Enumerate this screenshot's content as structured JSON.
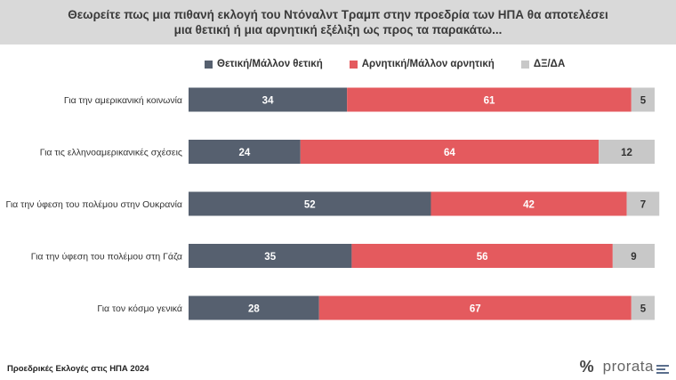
{
  "header": {
    "title_line1": "Θεωρείτε πως μια πιθανή εκλογή του Ντόναλντ Τραμπ στην προεδρία των ΗΠΑ θα αποτελέσει",
    "title_line2": "μια θετική ή μια αρνητική εξέλιξη ως προς τα παρακάτω..."
  },
  "colors": {
    "positive": "#56606f",
    "negative": "#e45a5e",
    "dkna": "#c8c8c8"
  },
  "chart_data": {
    "type": "bar",
    "orientation": "horizontal",
    "stacked": true,
    "categories": [
      "Για την αμερικανική κοινωνία",
      "Για τις ελληνοαμερικανικές σχέσεις",
      "Για την ύφεση του πολέμου στην Ουκρανία",
      "Για την ύφεση του πολέμου στη Γάζα",
      "Για τον κόσμο γενικά"
    ],
    "series": [
      {
        "name": "Θετική/Μάλλον θετική",
        "values": [
          34,
          24,
          52,
          35,
          28
        ]
      },
      {
        "name": "Αρνητική/Μάλλον αρνητική",
        "values": [
          61,
          64,
          42,
          56,
          67
        ]
      },
      {
        "name": "ΔΞ/ΔΑ",
        "values": [
          5,
          12,
          7,
          9,
          5
        ]
      }
    ],
    "xlim": [
      0,
      100
    ],
    "grid": false,
    "legend": "top"
  },
  "footer": {
    "source": "Προεδρικές Εκλογές στις ΗΠΑ 2024",
    "brand_symbol": "%",
    "brand_name": "prorata"
  }
}
